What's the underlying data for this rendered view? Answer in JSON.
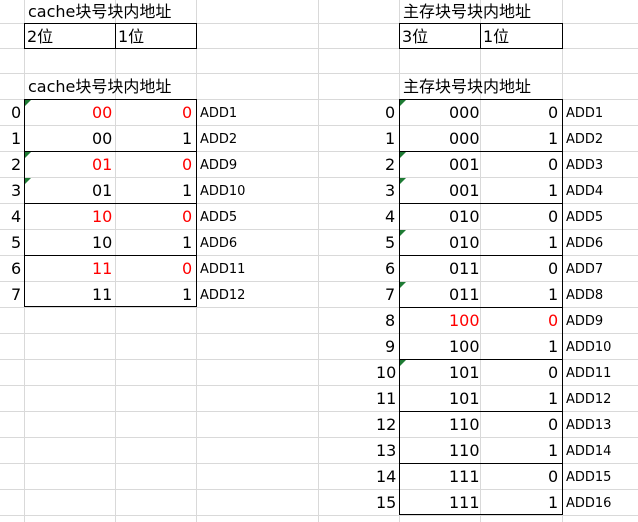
{
  "top_left": {
    "title": "cache块号块内地址",
    "cells": [
      "2位",
      "1位"
    ]
  },
  "top_right": {
    "title": "主存块号块内地址",
    "cells": [
      "3位",
      "1位"
    ]
  },
  "cache_table": {
    "title": "cache块号块内地址",
    "rows": [
      {
        "index": "0",
        "block": "00",
        "offset": "0",
        "addr": "ADD1"
      },
      {
        "index": "1",
        "block": "00",
        "offset": "1",
        "addr": "ADD2"
      },
      {
        "index": "2",
        "block": "01",
        "offset": "0",
        "addr": "ADD9"
      },
      {
        "index": "3",
        "block": "01",
        "offset": "1",
        "addr": "ADD10"
      },
      {
        "index": "4",
        "block": "10",
        "offset": "0",
        "addr": "ADD5"
      },
      {
        "index": "5",
        "block": "10",
        "offset": "1",
        "addr": "ADD6"
      },
      {
        "index": "6",
        "block": "11",
        "offset": "0",
        "addr": "ADD11"
      },
      {
        "index": "7",
        "block": "11",
        "offset": "1",
        "addr": "ADD12"
      }
    ]
  },
  "memory_table": {
    "title": "主存块号块内地址",
    "rows": [
      {
        "index": "0",
        "block": "000",
        "offset": "0",
        "addr": "ADD1"
      },
      {
        "index": "1",
        "block": "000",
        "offset": "1",
        "addr": "ADD2"
      },
      {
        "index": "2",
        "block": "001",
        "offset": "0",
        "addr": "ADD3"
      },
      {
        "index": "3",
        "block": "001",
        "offset": "1",
        "addr": "ADD4"
      },
      {
        "index": "4",
        "block": "010",
        "offset": "0",
        "addr": "ADD5"
      },
      {
        "index": "5",
        "block": "010",
        "offset": "1",
        "addr": "ADD6"
      },
      {
        "index": "6",
        "block": "011",
        "offset": "0",
        "addr": "ADD7"
      },
      {
        "index": "7",
        "block": "011",
        "offset": "1",
        "addr": "ADD8"
      },
      {
        "index": "8",
        "block": "100",
        "offset": "0",
        "addr": "ADD9"
      },
      {
        "index": "9",
        "block": "100",
        "offset": "1",
        "addr": "ADD10"
      },
      {
        "index": "10",
        "block": "101",
        "offset": "0",
        "addr": "ADD11"
      },
      {
        "index": "11",
        "block": "101",
        "offset": "1",
        "addr": "ADD12"
      },
      {
        "index": "12",
        "block": "110",
        "offset": "0",
        "addr": "ADD13"
      },
      {
        "index": "13",
        "block": "110",
        "offset": "1",
        "addr": "ADD14"
      },
      {
        "index": "14",
        "block": "111",
        "offset": "0",
        "addr": "ADD15"
      },
      {
        "index": "15",
        "block": "111",
        "offset": "1",
        "addr": "ADD16"
      }
    ]
  },
  "colors": {
    "grid": "#d9d9d9",
    "border": "#000000",
    "highlight": "#ff0000",
    "note_marker": "#1e7b34"
  },
  "icons": [
    "green-triangle-note-marker"
  ]
}
